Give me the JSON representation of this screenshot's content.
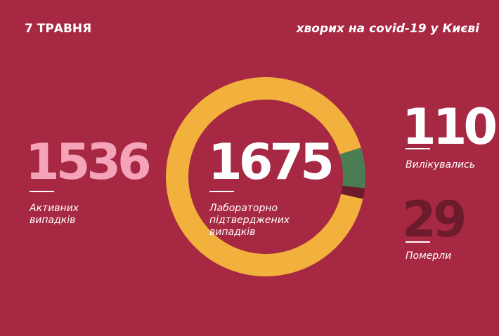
{
  "chart_data": {
    "type": "donut",
    "title": "7 ТРАВНЯ",
    "subtitle": "хворих на covid-19 у Києві",
    "categories": [
      "Активних випадків",
      "Вилікувались",
      "Померли"
    ],
    "values": [
      1536,
      110,
      29
    ],
    "colors": [
      "#f2b03c",
      "#4b7d55",
      "#6c1b2c"
    ],
    "total": 1675,
    "total_label": "Лабораторно підтверджених випадків"
  }
}
